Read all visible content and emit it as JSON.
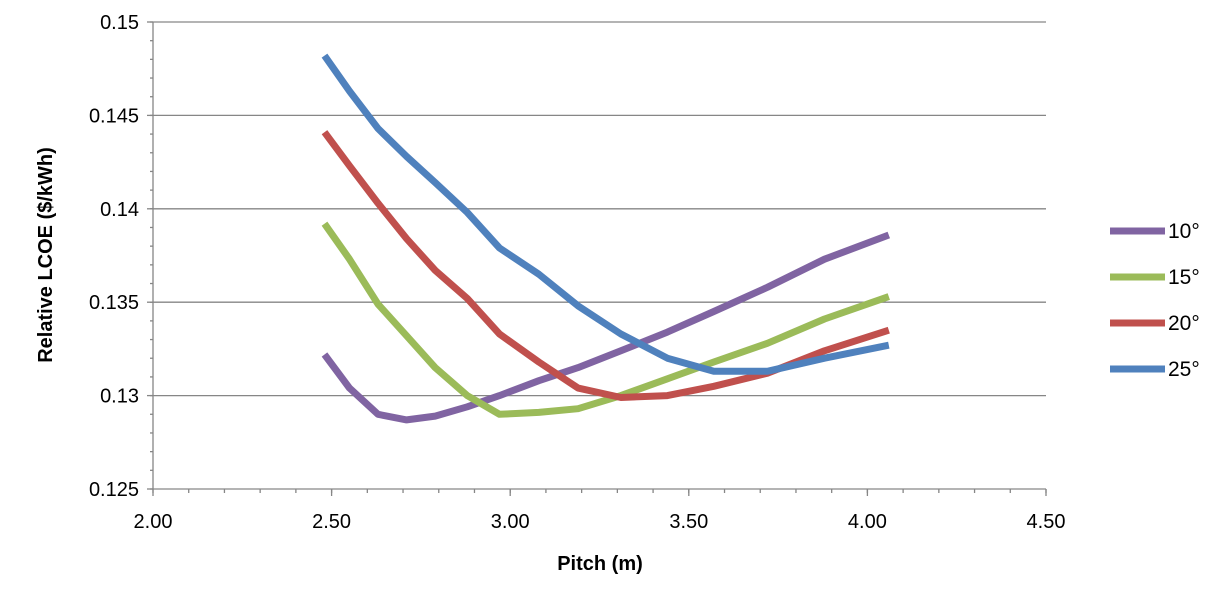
{
  "chart_data": {
    "type": "line",
    "title": "",
    "xlabel": "Pitch (m)",
    "ylabel": "Relative LCOE ($/kWh)",
    "xlim": [
      2.0,
      4.5
    ],
    "ylim": [
      0.125,
      0.15
    ],
    "x_ticks": [
      "2.00",
      "2.50",
      "3.00",
      "3.50",
      "4.00",
      "4.50"
    ],
    "y_ticks": [
      "0.125",
      "0.13",
      "0.135",
      "0.14",
      "0.145",
      "0.15"
    ],
    "legend_position": "right",
    "grid": true,
    "series": [
      {
        "name": "10°",
        "color": "#8064A2",
        "x": [
          2.48,
          2.55,
          2.63,
          2.71,
          2.79,
          2.88,
          2.97,
          3.08,
          3.19,
          3.31,
          3.44,
          3.57,
          3.72,
          3.88,
          4.06
        ],
        "y": [
          0.1322,
          0.1304,
          0.129,
          0.1287,
          0.1289,
          0.1294,
          0.13,
          0.1308,
          0.1315,
          0.1324,
          0.1334,
          0.1345,
          0.1358,
          0.1373,
          0.1386
        ]
      },
      {
        "name": "15°",
        "color": "#9BBB59",
        "x": [
          2.48,
          2.55,
          2.63,
          2.71,
          2.79,
          2.88,
          2.97,
          3.08,
          3.19,
          3.31,
          3.44,
          3.57,
          3.72,
          3.88,
          4.06
        ],
        "y": [
          0.1392,
          0.1373,
          0.1349,
          0.1332,
          0.1315,
          0.13,
          0.129,
          0.1291,
          0.1293,
          0.13,
          0.1309,
          0.1318,
          0.1328,
          0.1341,
          0.1353
        ]
      },
      {
        "name": "20°",
        "color": "#C0504D",
        "x": [
          2.48,
          2.55,
          2.63,
          2.71,
          2.79,
          2.88,
          2.97,
          3.08,
          3.19,
          3.31,
          3.44,
          3.57,
          3.72,
          3.88,
          4.06
        ],
        "y": [
          0.1441,
          0.1423,
          0.1403,
          0.1384,
          0.1367,
          0.1352,
          0.1333,
          0.1318,
          0.1304,
          0.1299,
          0.13,
          0.1305,
          0.1312,
          0.1324,
          0.1335
        ]
      },
      {
        "name": "25°",
        "color": "#4F81BD",
        "x": [
          2.48,
          2.55,
          2.63,
          2.71,
          2.79,
          2.88,
          2.97,
          3.08,
          3.19,
          3.31,
          3.44,
          3.57,
          3.72,
          3.88,
          4.06
        ],
        "y": [
          0.1482,
          0.1463,
          0.1443,
          0.1428,
          0.1414,
          0.1398,
          0.1379,
          0.1365,
          0.1348,
          0.1333,
          0.132,
          0.1313,
          0.1313,
          0.132,
          0.1327
        ]
      }
    ]
  }
}
